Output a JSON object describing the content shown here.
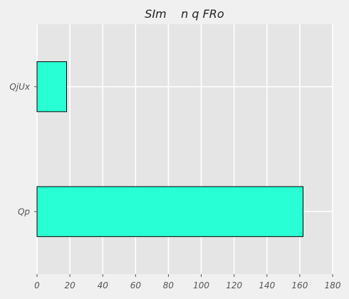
{
  "chart_data": {
    "type": "bar",
    "orientation": "horizontal",
    "title": "SIm    n q FRo",
    "categories": [
      "QjUx",
      "Qp"
    ],
    "values": [
      18,
      162
    ],
    "xlim": [
      0,
      180
    ],
    "xticks": [
      0,
      20,
      40,
      60,
      80,
      100,
      120,
      140,
      160,
      180
    ],
    "grid": true,
    "bar_color": "#28ffd4",
    "bar_edge_color": "#000000",
    "plot_background": "#e5e5e5",
    "figure_background": "#f0f0f0"
  }
}
